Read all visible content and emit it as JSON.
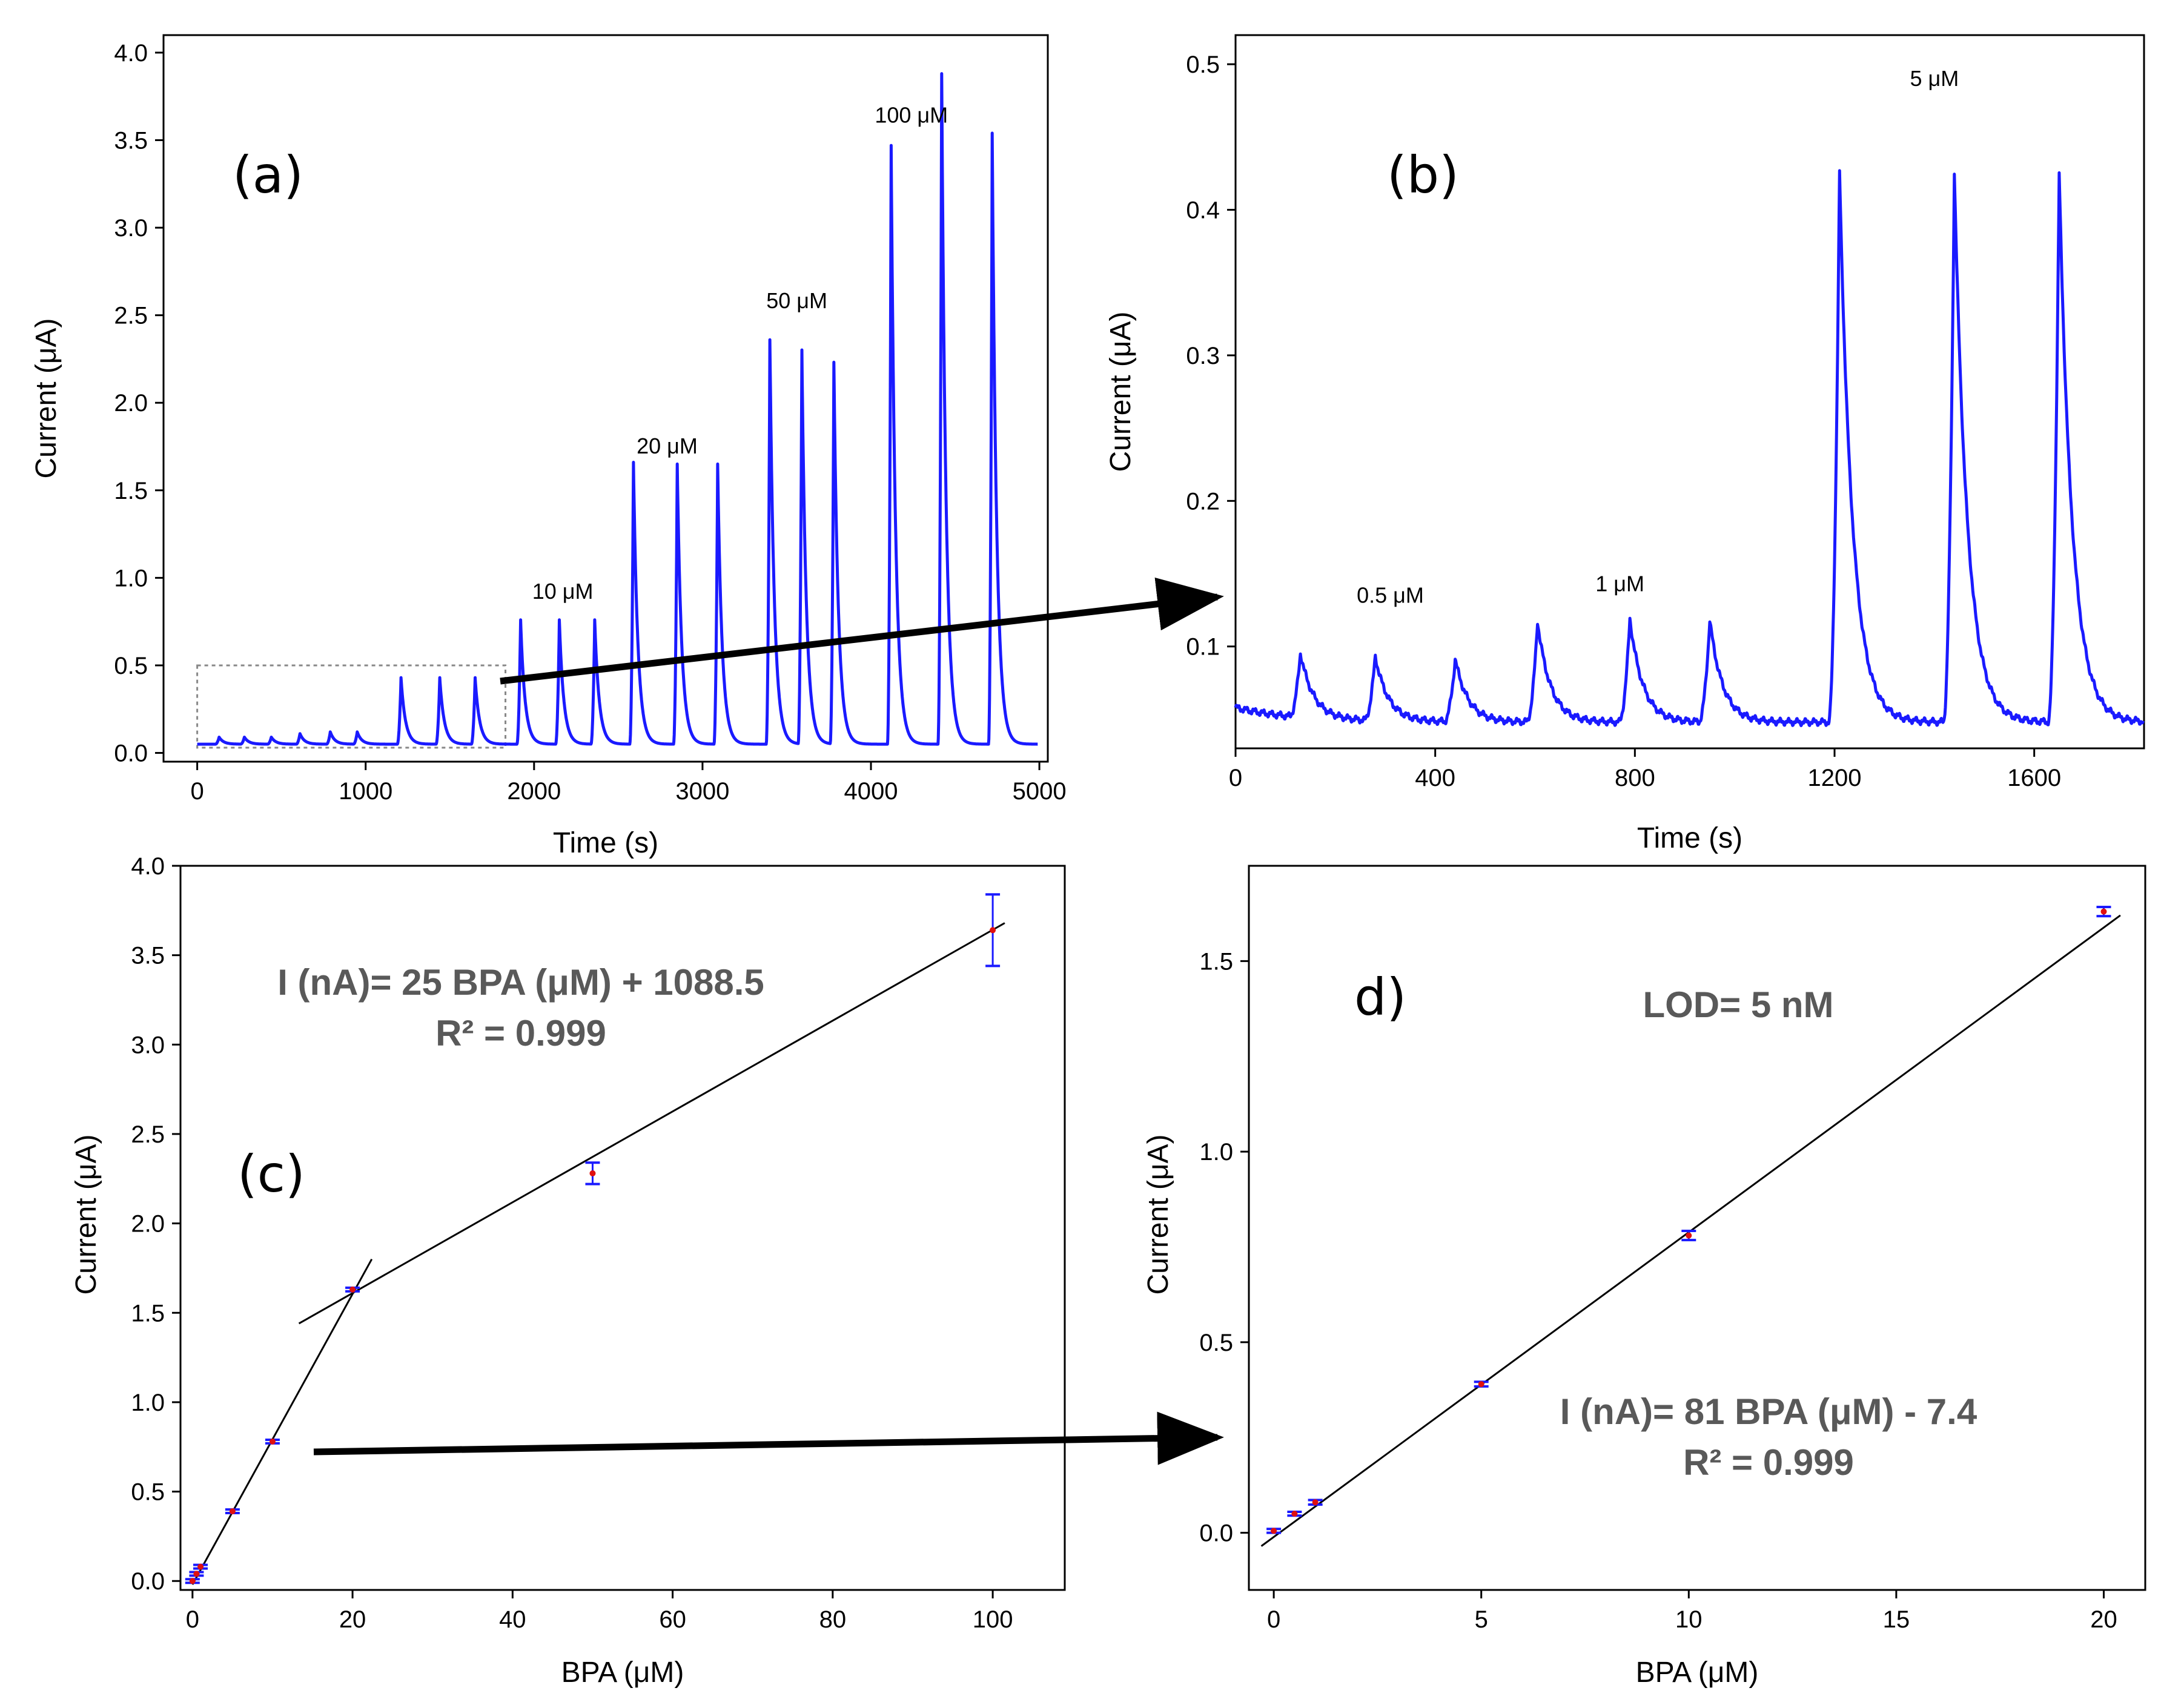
{
  "colors": {
    "trace": "#1a1aff",
    "fit": "#000000",
    "errorbar": "#1a1aff",
    "point": "#e01010",
    "equation": "#595959",
    "inset_box": "#888888",
    "arrow": "#000000"
  },
  "chart_data": [
    {
      "id": "a",
      "type": "line",
      "panel_label": "(a)",
      "title": "",
      "xlabel": "Time (s)",
      "ylabel": "Current (μA)",
      "xlim": [
        -200,
        5050
      ],
      "ylim": [
        -0.05,
        4.1
      ],
      "xticks": [
        0,
        1000,
        2000,
        3000,
        4000,
        5000
      ],
      "xtick_labels": [
        "0",
        "1000",
        "2000",
        "3000",
        "4000",
        "5000"
      ],
      "yticks": [
        0,
        0.5,
        1.0,
        1.5,
        2.0,
        2.5,
        3.0,
        3.5,
        4.0
      ],
      "ytick_labels": [
        "0.0",
        "0.5",
        "1.0",
        "1.5",
        "2.0",
        "2.5",
        "3.0",
        "3.5",
        "4.0"
      ],
      "baseline": 0.05,
      "peaks": [
        {
          "t": 130,
          "h": 0.09
        },
        {
          "t": 280,
          "h": 0.09
        },
        {
          "t": 440,
          "h": 0.09
        },
        {
          "t": 610,
          "h": 0.11
        },
        {
          "t": 790,
          "h": 0.12
        },
        {
          "t": 950,
          "h": 0.12
        },
        {
          "t": 1210,
          "h": 0.43
        },
        {
          "t": 1440,
          "h": 0.43
        },
        {
          "t": 1650,
          "h": 0.43
        },
        {
          "t": 1920,
          "h": 0.76
        },
        {
          "t": 2150,
          "h": 0.76
        },
        {
          "t": 2360,
          "h": 0.76
        },
        {
          "t": 2590,
          "h": 1.66
        },
        {
          "t": 2850,
          "h": 1.65
        },
        {
          "t": 3090,
          "h": 1.65
        },
        {
          "t": 3400,
          "h": 2.36
        },
        {
          "t": 3590,
          "h": 2.3
        },
        {
          "t": 3780,
          "h": 2.23
        },
        {
          "t": 4120,
          "h": 3.47
        },
        {
          "t": 4420,
          "h": 3.88
        },
        {
          "t": 4720,
          "h": 3.54
        }
      ],
      "annotations": [
        {
          "text": "10 μM",
          "x": 2170,
          "y": 0.88
        },
        {
          "text": "20 μM",
          "x": 2790,
          "y": 1.71
        },
        {
          "text": "50 μM",
          "x": 3560,
          "y": 2.54
        },
        {
          "text": "100 μM",
          "x": 4240,
          "y": 3.6
        }
      ],
      "inset_box": {
        "x0": 0,
        "x1": 1830,
        "y0": 0.03,
        "y1": 0.5
      }
    },
    {
      "id": "b",
      "type": "line",
      "panel_label": "(b)",
      "title": "",
      "xlabel": "Time (s)",
      "ylabel": "Current (μA)",
      "xlim": [
        0,
        1820
      ],
      "ylim": [
        0.03,
        0.52
      ],
      "xticks": [
        0,
        400,
        800,
        1200,
        1600
      ],
      "xtick_labels": [
        "0",
        "400",
        "800",
        "1200",
        "1600"
      ],
      "yticks": [
        0.1,
        0.2,
        0.3,
        0.4,
        0.5
      ],
      "ytick_labels": [
        "0.1",
        "0.2",
        "0.3",
        "0.4",
        "0.5"
      ],
      "baseline": 0.048,
      "start_value": 0.058,
      "peaks": [
        {
          "t": 130,
          "h": 0.092
        },
        {
          "t": 280,
          "h": 0.092
        },
        {
          "t": 440,
          "h": 0.091
        },
        {
          "t": 605,
          "h": 0.117
        },
        {
          "t": 790,
          "h": 0.119
        },
        {
          "t": 950,
          "h": 0.118
        },
        {
          "t": 1210,
          "h": 0.426
        },
        {
          "t": 1440,
          "h": 0.426
        },
        {
          "t": 1650,
          "h": 0.425
        }
      ],
      "annotations": [
        {
          "text": "0.5 μM",
          "x": 310,
          "y": 0.13
        },
        {
          "text": "1 μM",
          "x": 770,
          "y": 0.138
        },
        {
          "text": "5 μM",
          "x": 1400,
          "y": 0.485
        }
      ]
    },
    {
      "id": "c",
      "type": "scatter",
      "panel_label": "(c)",
      "title": "",
      "xlabel": "BPA (μM)",
      "ylabel": "Current (μA)",
      "xlim": [
        -1.5,
        109
      ],
      "ylim": [
        -0.05,
        4.0
      ],
      "xticks": [
        0,
        20,
        40,
        60,
        80,
        100
      ],
      "xtick_labels": [
        "0",
        "20",
        "40",
        "60",
        "80",
        "100"
      ],
      "yticks": [
        0,
        0.5,
        1.0,
        1.5,
        2.0,
        2.5,
        3.0,
        3.5,
        4.0
      ],
      "ytick_labels": [
        "0.0",
        "0.5",
        "1.0",
        "1.5",
        "2.0",
        "2.5",
        "3.0",
        "3.5",
        "4.0"
      ],
      "points": [
        {
          "x": 0,
          "y": 0.0,
          "err": 0.01
        },
        {
          "x": 0.5,
          "y": 0.04,
          "err": 0.01
        },
        {
          "x": 1,
          "y": 0.08,
          "err": 0.01
        },
        {
          "x": 5,
          "y": 0.39,
          "err": 0.01
        },
        {
          "x": 10,
          "y": 0.78,
          "err": 0.01
        },
        {
          "x": 20,
          "y": 1.63,
          "err": 0.01
        },
        {
          "x": 50,
          "y": 2.28,
          "err": 0.06
        },
        {
          "x": 100,
          "y": 3.64,
          "err": 0.2
        }
      ],
      "fit_lines": [
        {
          "x0": 0,
          "y0": -0.02,
          "x1": 22.4,
          "y1": 1.8
        },
        {
          "x0": 13.3,
          "y0": 1.44,
          "x1": 101.5,
          "y1": 3.68
        }
      ],
      "equation_lines": [
        "I (nA)= 25 BPA (μM) + 1088.5",
        "R² = 0.999"
      ]
    },
    {
      "id": "d",
      "type": "scatter",
      "panel_label": "d)",
      "title": "",
      "xlabel": "BPA (μM)",
      "ylabel": "Current (μA)",
      "xlim": [
        -0.6,
        21.0
      ],
      "ylim": [
        -0.15,
        1.75
      ],
      "xticks": [
        0,
        5,
        10,
        15,
        20
      ],
      "xtick_labels": [
        "0",
        "5",
        "10",
        "15",
        "20"
      ],
      "yticks": [
        0,
        0.5,
        1.0,
        1.5
      ],
      "ytick_labels": [
        "0.0",
        "0.5",
        "1.0",
        "1.5"
      ],
      "points": [
        {
          "x": 0,
          "y": 0.005,
          "err": 0.005
        },
        {
          "x": 0.5,
          "y": 0.05,
          "err": 0.005
        },
        {
          "x": 1,
          "y": 0.08,
          "err": 0.006
        },
        {
          "x": 5,
          "y": 0.39,
          "err": 0.006
        },
        {
          "x": 10,
          "y": 0.78,
          "err": 0.012
        },
        {
          "x": 20,
          "y": 1.63,
          "err": 0.012
        }
      ],
      "fit_lines": [
        {
          "x0": -0.3,
          "y0": -0.035,
          "x1": 20.4,
          "y1": 1.62
        }
      ],
      "lod_text": "LOD= 5 nM",
      "equation_lines": [
        "I (nA)= 81 BPA (μM) - 7.4",
        "R² = 0.999"
      ]
    }
  ]
}
